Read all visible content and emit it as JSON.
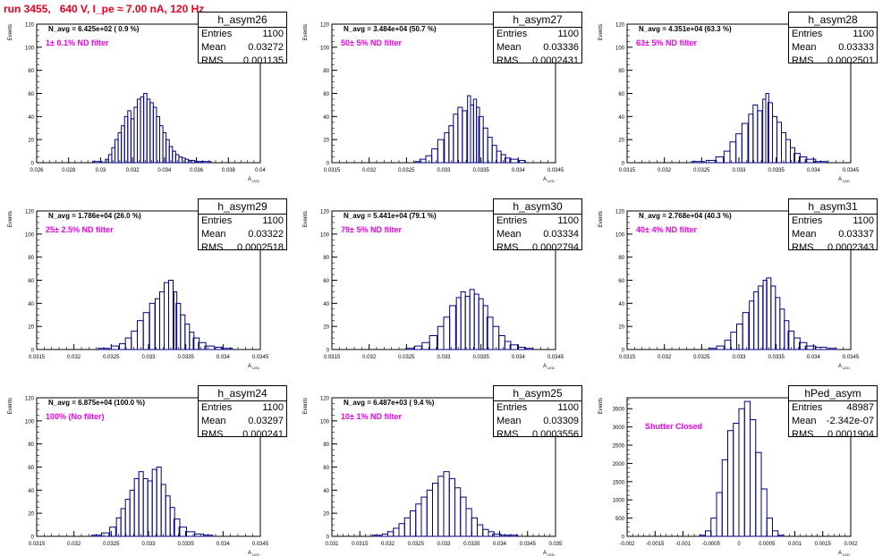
{
  "header": {
    "title": "run 3455,   640 V, I_pe ≈ 7.00 nA, 120 Hz"
  },
  "labels": {
    "entries": "Entries",
    "mean": "Mean",
    "rms": "RMS",
    "yaxis": "Events",
    "xaxis": "A",
    "xaxis_sub": "LED"
  },
  "colors": {
    "title": "#e8001e",
    "note": "#ee00ee",
    "hist": "#000080",
    "frame": "#000000"
  },
  "chart_data": [
    {
      "type": "bar",
      "name": "h_asym26",
      "nav": "N_avg = 6.425e+02 ( 0.9 %)",
      "note": "1± 0.1% ND filter",
      "stats": {
        "entries": "1100",
        "mean": "0.03272",
        "rms": "0.001135"
      },
      "xlim": [
        0.026,
        0.04
      ],
      "ylim": [
        0,
        120
      ],
      "xticks": [
        "0.026",
        "0.028",
        "0.03",
        "0.032",
        "0.034",
        "0.036",
        "0.038",
        "0.04"
      ],
      "yticks": [
        "0",
        "20",
        "40",
        "60",
        "80",
        "100",
        "120"
      ],
      "bins": [
        [
          0.0298,
          1
        ],
        [
          0.0304,
          3
        ],
        [
          0.0306,
          7
        ],
        [
          0.0308,
          13
        ],
        [
          0.031,
          20
        ],
        [
          0.0312,
          26
        ],
        [
          0.0314,
          32
        ],
        [
          0.0316,
          40
        ],
        [
          0.0318,
          45
        ],
        [
          0.032,
          38
        ],
        [
          0.0322,
          48
        ],
        [
          0.0324,
          55
        ],
        [
          0.0326,
          57
        ],
        [
          0.0328,
          60
        ],
        [
          0.033,
          55
        ],
        [
          0.0332,
          52
        ],
        [
          0.0334,
          48
        ],
        [
          0.0336,
          40
        ],
        [
          0.0338,
          32
        ],
        [
          0.034,
          26
        ],
        [
          0.0342,
          20
        ],
        [
          0.0344,
          14
        ],
        [
          0.0346,
          10
        ],
        [
          0.0348,
          7
        ],
        [
          0.035,
          5
        ],
        [
          0.0352,
          4
        ],
        [
          0.0354,
          3
        ],
        [
          0.0356,
          2
        ],
        [
          0.0358,
          2
        ],
        [
          0.036,
          1
        ],
        [
          0.0362,
          1
        ],
        [
          0.0366,
          1
        ]
      ]
    },
    {
      "type": "bar",
      "name": "h_asym27",
      "nav": "N_avg = 3.484e+04 (50.7 %)",
      "note": "50± 5% ND filter",
      "stats": {
        "entries": "1100",
        "mean": "0.03336",
        "rms": "0.0002431"
      },
      "xlim": [
        0.0315,
        0.0345
      ],
      "ylim": [
        0,
        120
      ],
      "xticks": [
        "0.0315",
        "0.032",
        "0.0325",
        "0.033",
        "0.0335",
        "0.034",
        "0.0345"
      ],
      "yticks": [
        "0",
        "20",
        "40",
        "60",
        "80",
        "100",
        "120"
      ],
      "bins": [
        [
          0.03265,
          1
        ],
        [
          0.03272,
          3
        ],
        [
          0.0328,
          6
        ],
        [
          0.03288,
          12
        ],
        [
          0.03296,
          20
        ],
        [
          0.03304,
          26
        ],
        [
          0.0331,
          32
        ],
        [
          0.03316,
          42
        ],
        [
          0.03322,
          48
        ],
        [
          0.03328,
          45
        ],
        [
          0.03334,
          58
        ],
        [
          0.03338,
          50
        ],
        [
          0.03342,
          55
        ],
        [
          0.03346,
          48
        ],
        [
          0.0335,
          40
        ],
        [
          0.03356,
          30
        ],
        [
          0.03362,
          22
        ],
        [
          0.03368,
          15
        ],
        [
          0.03374,
          10
        ],
        [
          0.0338,
          7
        ],
        [
          0.03386,
          4
        ],
        [
          0.03394,
          3
        ],
        [
          0.03405,
          2
        ]
      ]
    },
    {
      "type": "bar",
      "name": "h_asym28",
      "nav": "N_avg = 4.351e+04 (63.3 %)",
      "note": "63± 5% ND filter",
      "stats": {
        "entries": "1100",
        "mean": "0.03333",
        "rms": "0.0002501"
      },
      "xlim": [
        0.0315,
        0.0345
      ],
      "ylim": [
        0,
        120
      ],
      "xticks": [
        "0.0315",
        "0.032",
        "0.0325",
        "0.033",
        "0.0335",
        "0.034",
        "0.0345"
      ],
      "yticks": [
        "0",
        "20",
        "40",
        "60",
        "80",
        "100",
        "120"
      ],
      "bins": [
        [
          0.03245,
          1
        ],
        [
          0.03262,
          2
        ],
        [
          0.03274,
          5
        ],
        [
          0.03284,
          10
        ],
        [
          0.03292,
          18
        ],
        [
          0.033,
          25
        ],
        [
          0.03308,
          34
        ],
        [
          0.03316,
          42
        ],
        [
          0.03322,
          50
        ],
        [
          0.03328,
          45
        ],
        [
          0.03334,
          55
        ],
        [
          0.03338,
          60
        ],
        [
          0.03342,
          52
        ],
        [
          0.03348,
          40
        ],
        [
          0.03354,
          35
        ],
        [
          0.0336,
          26
        ],
        [
          0.03366,
          20
        ],
        [
          0.03372,
          13
        ],
        [
          0.03378,
          8
        ],
        [
          0.03386,
          5
        ],
        [
          0.03396,
          3
        ],
        [
          0.0341,
          1
        ]
      ]
    },
    {
      "type": "bar",
      "name": "h_asym29",
      "nav": "N_avg = 1.786e+04 (26.0 %)",
      "note": "25± 2.5% ND filter",
      "stats": {
        "entries": "1100",
        "mean": "0.03322",
        "rms": "0.0002518"
      },
      "xlim": [
        0.0315,
        0.0345
      ],
      "ylim": [
        0,
        120
      ],
      "xticks": [
        "0.0315",
        "0.032",
        "0.0325",
        "0.033",
        "0.0335",
        "0.034",
        "0.0345"
      ],
      "yticks": [
        "0",
        "20",
        "40",
        "60",
        "80",
        "100",
        "120"
      ],
      "bins": [
        [
          0.0324,
          1
        ],
        [
          0.03255,
          3
        ],
        [
          0.03265,
          5
        ],
        [
          0.03273,
          10
        ],
        [
          0.03281,
          16
        ],
        [
          0.03289,
          25
        ],
        [
          0.03297,
          32
        ],
        [
          0.03305,
          40
        ],
        [
          0.03312,
          44
        ],
        [
          0.03318,
          50
        ],
        [
          0.03324,
          58
        ],
        [
          0.0333,
          60
        ],
        [
          0.03336,
          50
        ],
        [
          0.0334,
          40
        ],
        [
          0.03346,
          30
        ],
        [
          0.03352,
          22
        ],
        [
          0.03358,
          15
        ],
        [
          0.03364,
          10
        ],
        [
          0.03372,
          6
        ],
        [
          0.03382,
          3
        ],
        [
          0.03395,
          2
        ],
        [
          0.03405,
          1
        ]
      ]
    },
    {
      "type": "bar",
      "name": "h_asym30",
      "nav": "N_avg = 5.441e+04 (79.1 %)",
      "note": "79± 5% ND filter",
      "stats": {
        "entries": "1100",
        "mean": "0.03334",
        "rms": "0.0002794"
      },
      "xlim": [
        0.0315,
        0.0345
      ],
      "ylim": [
        0,
        120
      ],
      "xticks": [
        "0.0315",
        "0.032",
        "0.0325",
        "0.033",
        "0.0335",
        "0.034",
        "0.0345"
      ],
      "yticks": [
        "0",
        "20",
        "40",
        "60",
        "80",
        "100",
        "120"
      ],
      "bins": [
        [
          0.03255,
          1
        ],
        [
          0.03266,
          3
        ],
        [
          0.03276,
          6
        ],
        [
          0.03286,
          12
        ],
        [
          0.03296,
          20
        ],
        [
          0.03304,
          28
        ],
        [
          0.03312,
          38
        ],
        [
          0.0332,
          45
        ],
        [
          0.03326,
          50
        ],
        [
          0.03332,
          46
        ],
        [
          0.03338,
          52
        ],
        [
          0.03344,
          48
        ],
        [
          0.0335,
          44
        ],
        [
          0.03356,
          38
        ],
        [
          0.03362,
          28
        ],
        [
          0.0337,
          20
        ],
        [
          0.03378,
          12
        ],
        [
          0.03386,
          7
        ],
        [
          0.03394,
          4
        ],
        [
          0.03404,
          2
        ],
        [
          0.03414,
          1
        ]
      ]
    },
    {
      "type": "bar",
      "name": "h_asym31",
      "nav": "N_avg = 2.768e+04 (40.3 %)",
      "note": "40± 4% ND filter",
      "stats": {
        "entries": "1100",
        "mean": "0.03337",
        "rms": "0.0002343"
      },
      "xlim": [
        0.0315,
        0.0345
      ],
      "ylim": [
        0,
        120
      ],
      "xticks": [
        "0.0315",
        "0.032",
        "0.0325",
        "0.033",
        "0.0335",
        "0.034",
        "0.0345"
      ],
      "yticks": [
        "0",
        "20",
        "40",
        "60",
        "80",
        "100",
        "120"
      ],
      "bins": [
        [
          0.03265,
          1
        ],
        [
          0.03275,
          3
        ],
        [
          0.03285,
          8
        ],
        [
          0.03293,
          15
        ],
        [
          0.03301,
          22
        ],
        [
          0.03309,
          32
        ],
        [
          0.03317,
          42
        ],
        [
          0.03323,
          50
        ],
        [
          0.03329,
          55
        ],
        [
          0.03335,
          60
        ],
        [
          0.0334,
          62
        ],
        [
          0.03346,
          55
        ],
        [
          0.03352,
          45
        ],
        [
          0.03358,
          35
        ],
        [
          0.03364,
          25
        ],
        [
          0.0337,
          16
        ],
        [
          0.03378,
          10
        ],
        [
          0.03386,
          6
        ],
        [
          0.03396,
          3
        ],
        [
          0.0341,
          2
        ],
        [
          0.03425,
          1
        ]
      ]
    },
    {
      "type": "bar",
      "name": "h_asym24",
      "nav": "N_avg = 6.875e+04 (100.0 %)",
      "note": "100% (No filter)",
      "stats": {
        "entries": "1100",
        "mean": "0.03297",
        "rms": "0.000241"
      },
      "xlim": [
        0.0315,
        0.0345
      ],
      "ylim": [
        0,
        120
      ],
      "xticks": [
        "0.0315",
        "0.032",
        "0.0325",
        "0.033",
        "0.0335",
        "0.034",
        "0.0345"
      ],
      "yticks": [
        "0",
        "20",
        "40",
        "60",
        "80",
        "100",
        "120"
      ],
      "bins": [
        [
          0.0323,
          1
        ],
        [
          0.03242,
          3
        ],
        [
          0.03252,
          8
        ],
        [
          0.0326,
          16
        ],
        [
          0.03266,
          24
        ],
        [
          0.03272,
          32
        ],
        [
          0.03278,
          40
        ],
        [
          0.03284,
          50
        ],
        [
          0.0329,
          56
        ],
        [
          0.03296,
          50
        ],
        [
          0.03302,
          48
        ],
        [
          0.03308,
          58
        ],
        [
          0.03314,
          60
        ],
        [
          0.0332,
          45
        ],
        [
          0.03326,
          35
        ],
        [
          0.03332,
          25
        ],
        [
          0.03338,
          15
        ],
        [
          0.03346,
          8
        ],
        [
          0.03356,
          4
        ],
        [
          0.03368,
          2
        ],
        [
          0.0338,
          1
        ]
      ]
    },
    {
      "type": "bar",
      "name": "h_asym25",
      "nav": "N_avg = 6.487e+03 ( 9.4 %)",
      "note": "10± 1% ND filter",
      "stats": {
        "entries": "1100",
        "mean": "0.03309",
        "rms": "0.0003556"
      },
      "xlim": [
        0.031,
        0.035
      ],
      "ylim": [
        0,
        120
      ],
      "xticks": [
        "0.031",
        "0.0315",
        "0.032",
        "0.0325",
        "0.033",
        "0.0335",
        "0.034",
        "0.0345",
        "0.035"
      ],
      "yticks": [
        "0",
        "20",
        "40",
        "60",
        "80",
        "100",
        "120"
      ],
      "bins": [
        [
          0.0318,
          1
        ],
        [
          0.03195,
          2
        ],
        [
          0.03205,
          4
        ],
        [
          0.03215,
          7
        ],
        [
          0.03225,
          11
        ],
        [
          0.03235,
          16
        ],
        [
          0.03245,
          22
        ],
        [
          0.03255,
          28
        ],
        [
          0.03265,
          34
        ],
        [
          0.03275,
          40
        ],
        [
          0.03285,
          46
        ],
        [
          0.03295,
          52
        ],
        [
          0.03305,
          56
        ],
        [
          0.03315,
          50
        ],
        [
          0.03325,
          42
        ],
        [
          0.03335,
          34
        ],
        [
          0.03345,
          24
        ],
        [
          0.03355,
          16
        ],
        [
          0.03365,
          10
        ],
        [
          0.03375,
          6
        ],
        [
          0.03385,
          4
        ],
        [
          0.03395,
          2
        ],
        [
          0.0341,
          1
        ],
        [
          0.03425,
          1
        ]
      ]
    },
    {
      "type": "bar",
      "name": "hPed_asym",
      "nav": "",
      "note": "Shutter Closed",
      "stats": {
        "entries": "48987",
        "mean": "-2.342e-07",
        "rms": "0.0001904"
      },
      "xlim": [
        -0.002,
        0.002
      ],
      "ylim": [
        0,
        3800
      ],
      "xticks": [
        "-0.002",
        "-0.0015",
        "-0.001",
        "-0.0005",
        "0",
        "0.0005",
        "0.001",
        "0.0015",
        "0.002"
      ],
      "yticks": [
        "0",
        "500",
        "1000",
        "1500",
        "2000",
        "2500",
        "3000",
        "3500"
      ],
      "bins": [
        [
          -0.00065,
          30
        ],
        [
          -0.00055,
          150
        ],
        [
          -0.00045,
          500
        ],
        [
          -0.00035,
          1200
        ],
        [
          -0.00025,
          2100
        ],
        [
          -0.00015,
          2900
        ],
        [
          -5e-05,
          3100
        ],
        [
          5e-05,
          3500
        ],
        [
          0.00015,
          3700
        ],
        [
          0.00025,
          3200
        ],
        [
          0.00035,
          2300
        ],
        [
          0.00045,
          1300
        ],
        [
          0.00055,
          500
        ],
        [
          0.00065,
          150
        ],
        [
          0.00075,
          30
        ]
      ]
    }
  ]
}
